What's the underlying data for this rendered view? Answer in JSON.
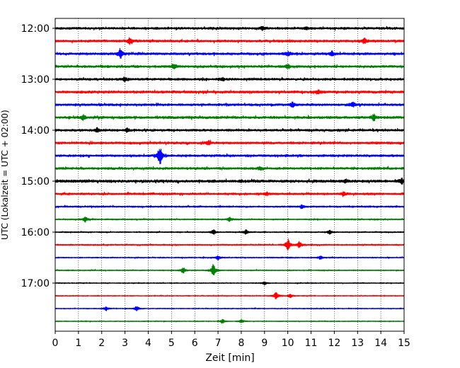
{
  "chart_data": {
    "type": "line",
    "title": "",
    "xlabel": "Zeit  [min]",
    "ylabel": "UTC (Lokalzeit = UTC + 02:00)",
    "xlim": [
      0,
      15
    ],
    "xticks": [
      0,
      1,
      2,
      3,
      4,
      5,
      6,
      7,
      8,
      9,
      10,
      11,
      12,
      13,
      14,
      15
    ],
    "ytick_labels": [
      "12:00",
      "13:00",
      "14:00",
      "15:00",
      "16:00",
      "17:00"
    ],
    "grid": "vertical dotted",
    "trace_colors": [
      "#000000",
      "#ff0000",
      "#0000ff",
      "#008000"
    ],
    "series": [
      {
        "start": "12:00",
        "amplitude": 1.0,
        "events": [
          {
            "t": 8.9,
            "a": 2.0
          },
          {
            "t": 10.8,
            "a": 1.6
          }
        ]
      },
      {
        "start": "12:15",
        "amplitude": 1.0,
        "events": [
          {
            "t": 3.2,
            "a": 3.5
          },
          {
            "t": 13.3,
            "a": 2.5
          }
        ]
      },
      {
        "start": "12:30",
        "amplitude": 1.0,
        "events": [
          {
            "t": 2.8,
            "a": 5.0
          },
          {
            "t": 10.0,
            "a": 2.0
          },
          {
            "t": 11.9,
            "a": 2.5
          }
        ]
      },
      {
        "start": "12:45",
        "amplitude": 1.0,
        "events": [
          {
            "t": 5.1,
            "a": 2.0
          },
          {
            "t": 10.0,
            "a": 1.8
          }
        ]
      },
      {
        "start": "13:00",
        "amplitude": 1.0,
        "events": [
          {
            "t": 3.0,
            "a": 2.0
          },
          {
            "t": 7.2,
            "a": 1.5
          }
        ]
      },
      {
        "start": "13:15",
        "amplitude": 1.1,
        "events": [
          {
            "t": 11.3,
            "a": 1.8
          }
        ]
      },
      {
        "start": "13:30",
        "amplitude": 1.0,
        "events": [
          {
            "t": 10.2,
            "a": 2.5
          },
          {
            "t": 12.8,
            "a": 2.5
          }
        ]
      },
      {
        "start": "13:45",
        "amplitude": 1.1,
        "events": [
          {
            "t": 1.2,
            "a": 2.5
          },
          {
            "t": 13.7,
            "a": 3.0
          }
        ]
      },
      {
        "start": "14:00",
        "amplitude": 1.0,
        "events": [
          {
            "t": 1.8,
            "a": 2.0
          },
          {
            "t": 3.1,
            "a": 1.6
          }
        ]
      },
      {
        "start": "14:15",
        "amplitude": 1.0,
        "events": [
          {
            "t": 6.6,
            "a": 2.0
          }
        ]
      },
      {
        "start": "14:30",
        "amplitude": 1.0,
        "events": [
          {
            "t": 4.5,
            "a": 9.0
          }
        ]
      },
      {
        "start": "14:45",
        "amplitude": 1.0,
        "events": [
          {
            "t": 8.8,
            "a": 1.8
          }
        ]
      },
      {
        "start": "15:00",
        "amplitude": 1.2,
        "events": [
          {
            "t": 14.9,
            "a": 2.5
          },
          {
            "t": 12.5,
            "a": 1.5
          }
        ]
      },
      {
        "start": "15:15",
        "amplitude": 0.9,
        "events": [
          {
            "t": 12.4,
            "a": 2.0
          },
          {
            "t": 9.1,
            "a": 1.5
          }
        ]
      },
      {
        "start": "15:30",
        "amplitude": 0.7,
        "events": [
          {
            "t": 10.6,
            "a": 1.5
          }
        ]
      },
      {
        "start": "15:45",
        "amplitude": 0.6,
        "events": [
          {
            "t": 1.3,
            "a": 2.5
          },
          {
            "t": 7.5,
            "a": 2.0
          }
        ]
      },
      {
        "start": "16:00",
        "amplitude": 0.5,
        "events": [
          {
            "t": 6.8,
            "a": 2.5
          },
          {
            "t": 8.2,
            "a": 2.0
          },
          {
            "t": 11.8,
            "a": 2.0
          }
        ]
      },
      {
        "start": "16:15",
        "amplitude": 0.6,
        "events": [
          {
            "t": 10.0,
            "a": 6.0
          },
          {
            "t": 10.5,
            "a": 3.5
          }
        ]
      },
      {
        "start": "16:30",
        "amplitude": 0.5,
        "events": [
          {
            "t": 7.0,
            "a": 2.0
          },
          {
            "t": 11.4,
            "a": 1.8
          }
        ]
      },
      {
        "start": "16:45",
        "amplitude": 0.5,
        "events": [
          {
            "t": 5.5,
            "a": 3.0
          },
          {
            "t": 6.8,
            "a": 7.0
          }
        ]
      },
      {
        "start": "17:00",
        "amplitude": 0.4,
        "events": [
          {
            "t": 9.0,
            "a": 1.5
          }
        ]
      },
      {
        "start": "17:15",
        "amplitude": 0.4,
        "events": [
          {
            "t": 9.5,
            "a": 3.5
          },
          {
            "t": 10.1,
            "a": 2.0
          }
        ]
      },
      {
        "start": "17:30",
        "amplitude": 0.4,
        "events": [
          {
            "t": 2.2,
            "a": 2.0
          },
          {
            "t": 3.5,
            "a": 2.5
          }
        ]
      },
      {
        "start": "17:45",
        "amplitude": 0.4,
        "events": [
          {
            "t": 7.2,
            "a": 2.0
          },
          {
            "t": 8.0,
            "a": 1.5
          }
        ]
      }
    ]
  }
}
